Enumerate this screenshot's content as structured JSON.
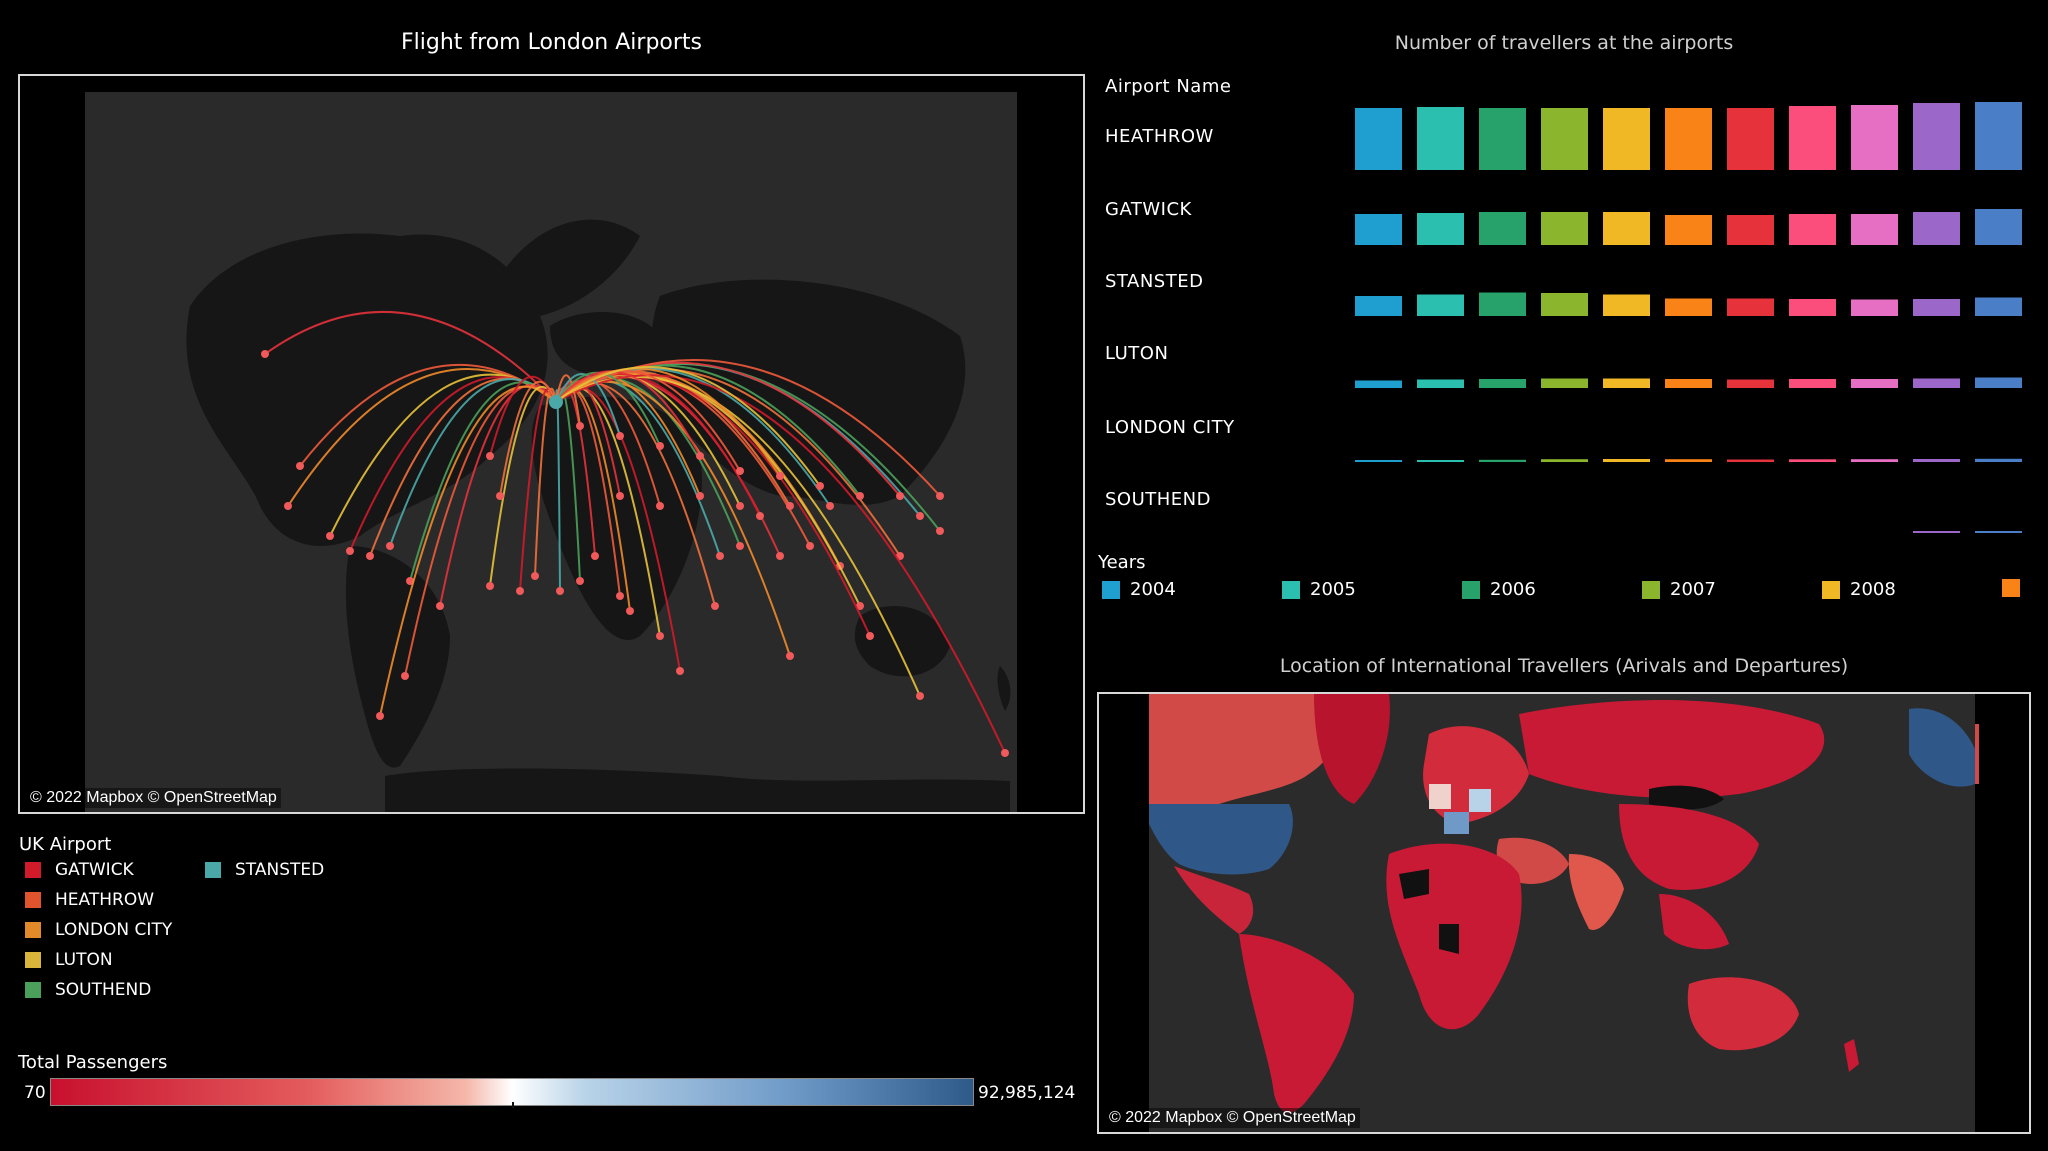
{
  "flight_map": {
    "title": "Flight from London Airports",
    "attribution": "© 2022 Mapbox © OpenStreetMap"
  },
  "uk_airport_legend": {
    "title": "UK Airport",
    "items": [
      {
        "label": "GATWICK",
        "color": "#d11a2a"
      },
      {
        "label": "HEATHROW",
        "color": "#e0542d"
      },
      {
        "label": "LONDON CITY",
        "color": "#e08a2a"
      },
      {
        "label": "LUTON",
        "color": "#d9b53a"
      },
      {
        "label": "SOUTHEND",
        "color": "#4aa05a"
      },
      {
        "label": "STANSTED",
        "color": "#4aa8a8"
      }
    ]
  },
  "total_passengers": {
    "title": "Total Passengers",
    "min": "70",
    "max": "92,985,124"
  },
  "travellers_chart": {
    "title": "Number of travellers at the airports",
    "row_header": "Airport Name",
    "airports": [
      "HEATHROW",
      "GATWICK",
      "STANSTED",
      "LUTON",
      "LONDON CITY",
      "SOUTHEND"
    ]
  },
  "years_legend": {
    "title": "Years",
    "items": [
      {
        "label": "2004",
        "color": "#1f9fcf"
      },
      {
        "label": "2005",
        "color": "#2bbfb0"
      },
      {
        "label": "2006",
        "color": "#26a26a"
      },
      {
        "label": "2007",
        "color": "#8ab52c"
      },
      {
        "label": "2008",
        "color": "#f0b824"
      },
      {
        "label": "",
        "color": "#f98317"
      }
    ]
  },
  "intl_map": {
    "title": "Location of International Travellers (Arivals and Departures)",
    "attribution": "© 2022 Mapbox © OpenStreetMap"
  },
  "chart_data": {
    "type": "bar",
    "title": "Number of travellers at the airports",
    "categories": [
      "HEATHROW",
      "GATWICK",
      "STANSTED",
      "LUTON",
      "LONDON CITY",
      "SOUTHEND"
    ],
    "series": [
      {
        "name": "2004",
        "values": [
          62,
          31,
          20,
          7.5,
          1.5,
          0
        ],
        "color": "#1f9fcf"
      },
      {
        "name": "2005",
        "values": [
          63,
          32,
          21.5,
          8.5,
          1.8,
          0
        ],
        "color": "#2bbfb0"
      },
      {
        "name": "2006",
        "values": [
          62,
          33,
          23.5,
          9.0,
          2.2,
          0
        ],
        "color": "#26a26a"
      },
      {
        "name": "2007",
        "values": [
          62,
          33,
          23.0,
          9.5,
          2.8,
          0
        ],
        "color": "#8ab52c"
      },
      {
        "name": "2008",
        "values": [
          62,
          33,
          21.5,
          9.5,
          3.0,
          0
        ],
        "color": "#f0b824"
      },
      {
        "name": "",
        "values": [
          62,
          30,
          17.5,
          9.0,
          2.8,
          0
        ],
        "color": "#f98317"
      },
      {
        "name": "",
        "values": [
          62,
          30,
          17.5,
          8.5,
          2.5,
          0
        ],
        "color": "#e5323b"
      },
      {
        "name": "",
        "values": [
          64,
          31,
          17.0,
          9.0,
          2.7,
          0
        ],
        "color": "#fb4e7c"
      },
      {
        "name": "",
        "values": [
          65,
          31,
          16.5,
          9.0,
          2.8,
          0
        ],
        "color": "#e66fc3"
      },
      {
        "name": "",
        "values": [
          67,
          33,
          17.0,
          9.5,
          3.0,
          0.5
        ],
        "color": "#9b67c9"
      },
      {
        "name": "",
        "values": [
          68,
          36,
          18.5,
          10.5,
          3.2,
          0.8
        ],
        "color": "#4a7fc8"
      }
    ]
  }
}
